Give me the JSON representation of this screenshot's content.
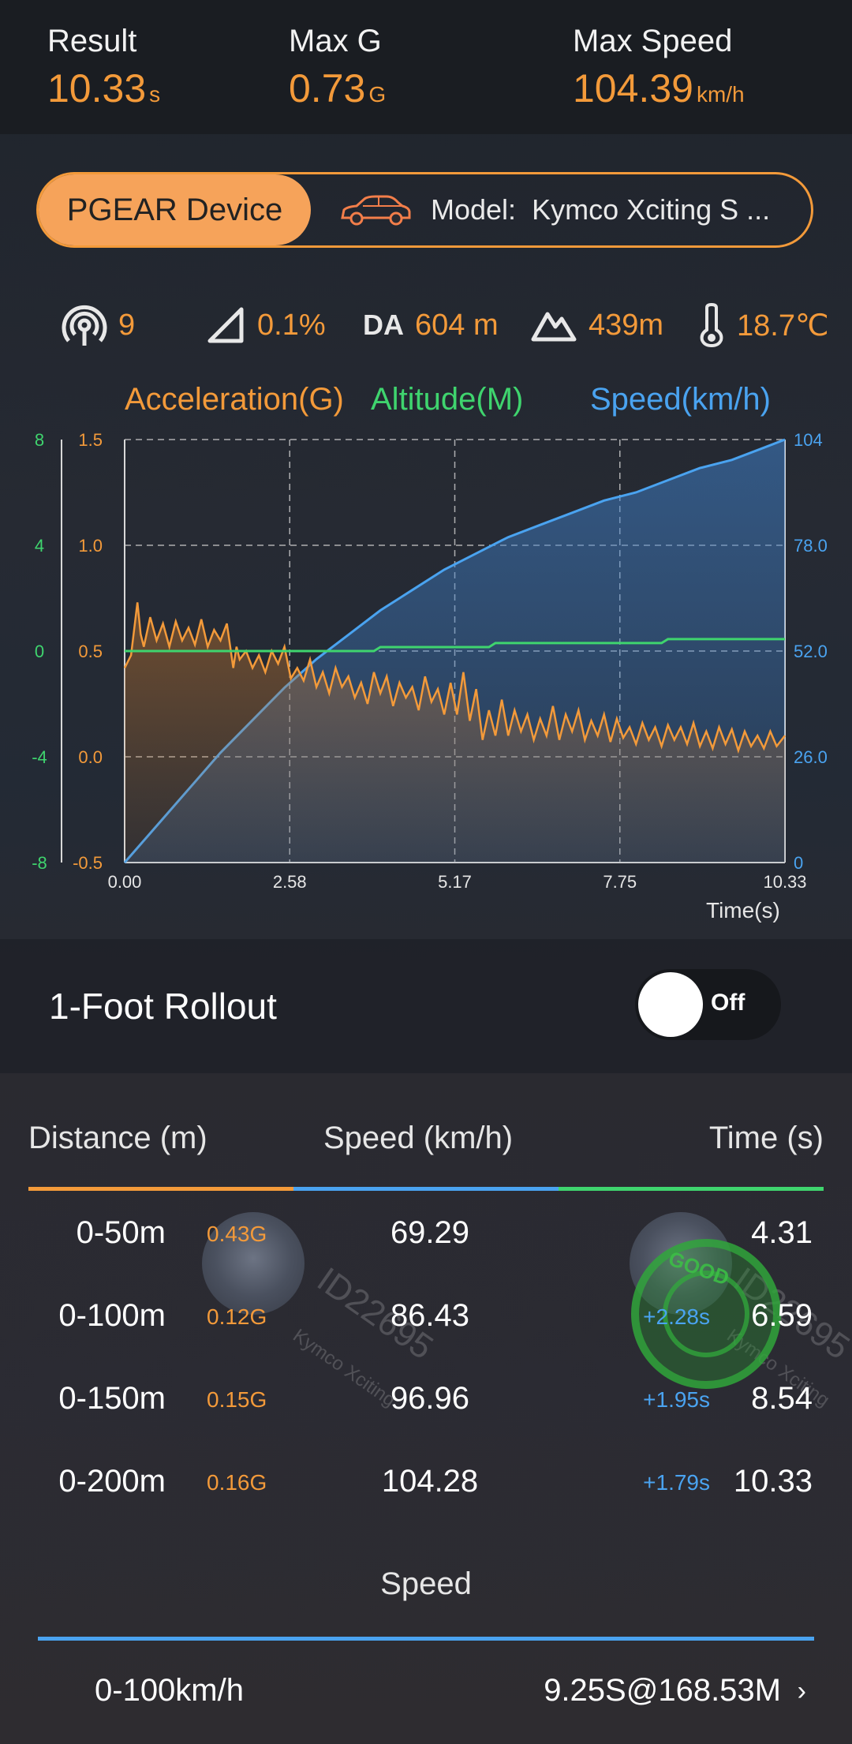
{
  "summary": {
    "result_label": "Result",
    "result_value": "10.33",
    "result_unit": "s",
    "maxg_label": "Max G",
    "maxg_value": "0.73",
    "maxg_unit": "G",
    "maxspeed_label": "Max Speed",
    "maxspeed_value": "104.39",
    "maxspeed_unit": "km/h"
  },
  "device": {
    "button_label": "PGEAR Device",
    "model_label": "Model:",
    "model_value": "Kymco Xciting S ..."
  },
  "conditions": {
    "satellites": "9",
    "slope": "0.1%",
    "da_label": "DA",
    "da_value": "604 m",
    "altitude": "439m",
    "temperature": "18.7℃"
  },
  "chart_data": {
    "type": "line",
    "legend": [
      "Acceleration(G)",
      "Altitude(M)",
      "Speed(km/h)"
    ],
    "x_ticks": [
      "0.00",
      "2.58",
      "5.17",
      "7.75",
      "10.33"
    ],
    "xlabel": "Time(s)",
    "xlim": [
      0,
      10.33
    ],
    "accel_ticks": [
      "1.5",
      "1.0",
      "0.5",
      "0.0",
      "-0.5"
    ],
    "accel_lim": [
      -0.5,
      1.5
    ],
    "alt_ticks": [
      "8",
      "4",
      "0",
      "-4",
      "-8"
    ],
    "alt_lim": [
      -8,
      8
    ],
    "speed_ticks": [
      "104",
      "78.0",
      "52.0",
      "26.0",
      "0"
    ],
    "speed_lim": [
      0,
      104
    ],
    "grid": true,
    "series": [
      {
        "name": "Speed(km/h)",
        "color": "#4aa3f0",
        "x": [
          0,
          0.5,
          1,
          1.5,
          2,
          2.5,
          3,
          3.5,
          4,
          4.5,
          5,
          5.5,
          6,
          6.5,
          7,
          7.5,
          8,
          8.5,
          9,
          9.5,
          10,
          10.33
        ],
        "y": [
          0,
          9,
          18,
          27,
          35,
          43,
          50,
          56,
          62,
          67,
          72,
          76,
          80,
          83,
          86,
          89,
          91,
          94,
          97,
          99,
          102,
          104
        ]
      },
      {
        "name": "Altitude(M)",
        "color": "#3fd46e",
        "x": [
          0,
          3.9,
          4.0,
          5.7,
          5.8,
          8.4,
          8.5,
          10.33
        ],
        "y": [
          0,
          0,
          0.15,
          0.15,
          0.3,
          0.3,
          0.45,
          0.45
        ]
      },
      {
        "name": "Acceleration(G)",
        "color": "#f39a3a",
        "x": [
          0,
          0.1,
          0.2,
          0.25,
          0.3,
          0.4,
          0.5,
          0.6,
          0.7,
          0.8,
          0.9,
          1.0,
          1.1,
          1.2,
          1.3,
          1.4,
          1.5,
          1.6,
          1.7,
          1.75,
          1.8,
          1.9,
          2.0,
          2.1,
          2.2,
          2.3,
          2.4,
          2.5,
          2.6,
          2.7,
          2.8,
          2.9,
          3.0,
          3.1,
          3.2,
          3.3,
          3.4,
          3.5,
          3.6,
          3.7,
          3.8,
          3.9,
          4.0,
          4.1,
          4.2,
          4.3,
          4.4,
          4.5,
          4.6,
          4.7,
          4.8,
          4.9,
          5.0,
          5.1,
          5.2,
          5.3,
          5.4,
          5.5,
          5.6,
          5.7,
          5.8,
          5.9,
          6.0,
          6.1,
          6.2,
          6.3,
          6.4,
          6.5,
          6.6,
          6.7,
          6.8,
          6.9,
          7.0,
          7.1,
          7.2,
          7.3,
          7.4,
          7.5,
          7.6,
          7.7,
          7.8,
          7.9,
          8.0,
          8.1,
          8.2,
          8.3,
          8.4,
          8.5,
          8.6,
          8.7,
          8.8,
          8.9,
          9.0,
          9.1,
          9.2,
          9.3,
          9.4,
          9.5,
          9.6,
          9.7,
          9.8,
          9.9,
          10.0,
          10.1,
          10.2,
          10.33
        ],
        "y": [
          0.42,
          0.48,
          0.73,
          0.58,
          0.52,
          0.66,
          0.55,
          0.63,
          0.52,
          0.64,
          0.55,
          0.61,
          0.53,
          0.65,
          0.52,
          0.6,
          0.55,
          0.63,
          0.42,
          0.52,
          0.46,
          0.5,
          0.42,
          0.48,
          0.4,
          0.5,
          0.44,
          0.52,
          0.37,
          0.42,
          0.36,
          0.46,
          0.33,
          0.4,
          0.3,
          0.42,
          0.33,
          0.38,
          0.28,
          0.35,
          0.25,
          0.4,
          0.3,
          0.38,
          0.24,
          0.35,
          0.28,
          0.33,
          0.22,
          0.38,
          0.26,
          0.32,
          0.2,
          0.35,
          0.2,
          0.4,
          0.17,
          0.32,
          0.08,
          0.22,
          0.1,
          0.27,
          0.1,
          0.22,
          0.12,
          0.2,
          0.08,
          0.18,
          0.1,
          0.24,
          0.08,
          0.2,
          0.12,
          0.22,
          0.08,
          0.17,
          0.1,
          0.2,
          0.07,
          0.18,
          0.09,
          0.14,
          0.06,
          0.16,
          0.08,
          0.14,
          0.05,
          0.15,
          0.08,
          0.14,
          0.06,
          0.16,
          0.05,
          0.12,
          0.04,
          0.14,
          0.06,
          0.13,
          0.03,
          0.12,
          0.05,
          0.1,
          0.04,
          0.12,
          0.05,
          0.1
        ]
      }
    ]
  },
  "rollout": {
    "label": "1-Foot Rollout",
    "toggle_state": "Off"
  },
  "distance_table": {
    "headers": [
      "Distance (m)",
      "Speed (km/h)",
      "Time (s)"
    ],
    "header_colors": [
      "#f39a3a",
      "#4aa3f0",
      "#3fd46e"
    ],
    "rows": [
      {
        "distance": "0-50m",
        "g": "0.43G",
        "speed": "69.29",
        "delta": "",
        "time": "4.31"
      },
      {
        "distance": "0-100m",
        "g": "0.12G",
        "speed": "86.43",
        "delta": "+2.28s",
        "time": "6.59"
      },
      {
        "distance": "0-150m",
        "g": "0.15G",
        "speed": "96.96",
        "delta": "+1.95s",
        "time": "8.54"
      },
      {
        "distance": "0-200m",
        "g": "0.16G",
        "speed": "104.28",
        "delta": "+1.79s",
        "time": "10.33"
      }
    ]
  },
  "watermark": {
    "id_text": "ID22695",
    "model_text": "Kymco Xciting",
    "stamp_text": "GOOD"
  },
  "speed_section": {
    "title": "Speed",
    "row_label": "0-100km/h",
    "row_value": "9.25S@168.53M"
  }
}
